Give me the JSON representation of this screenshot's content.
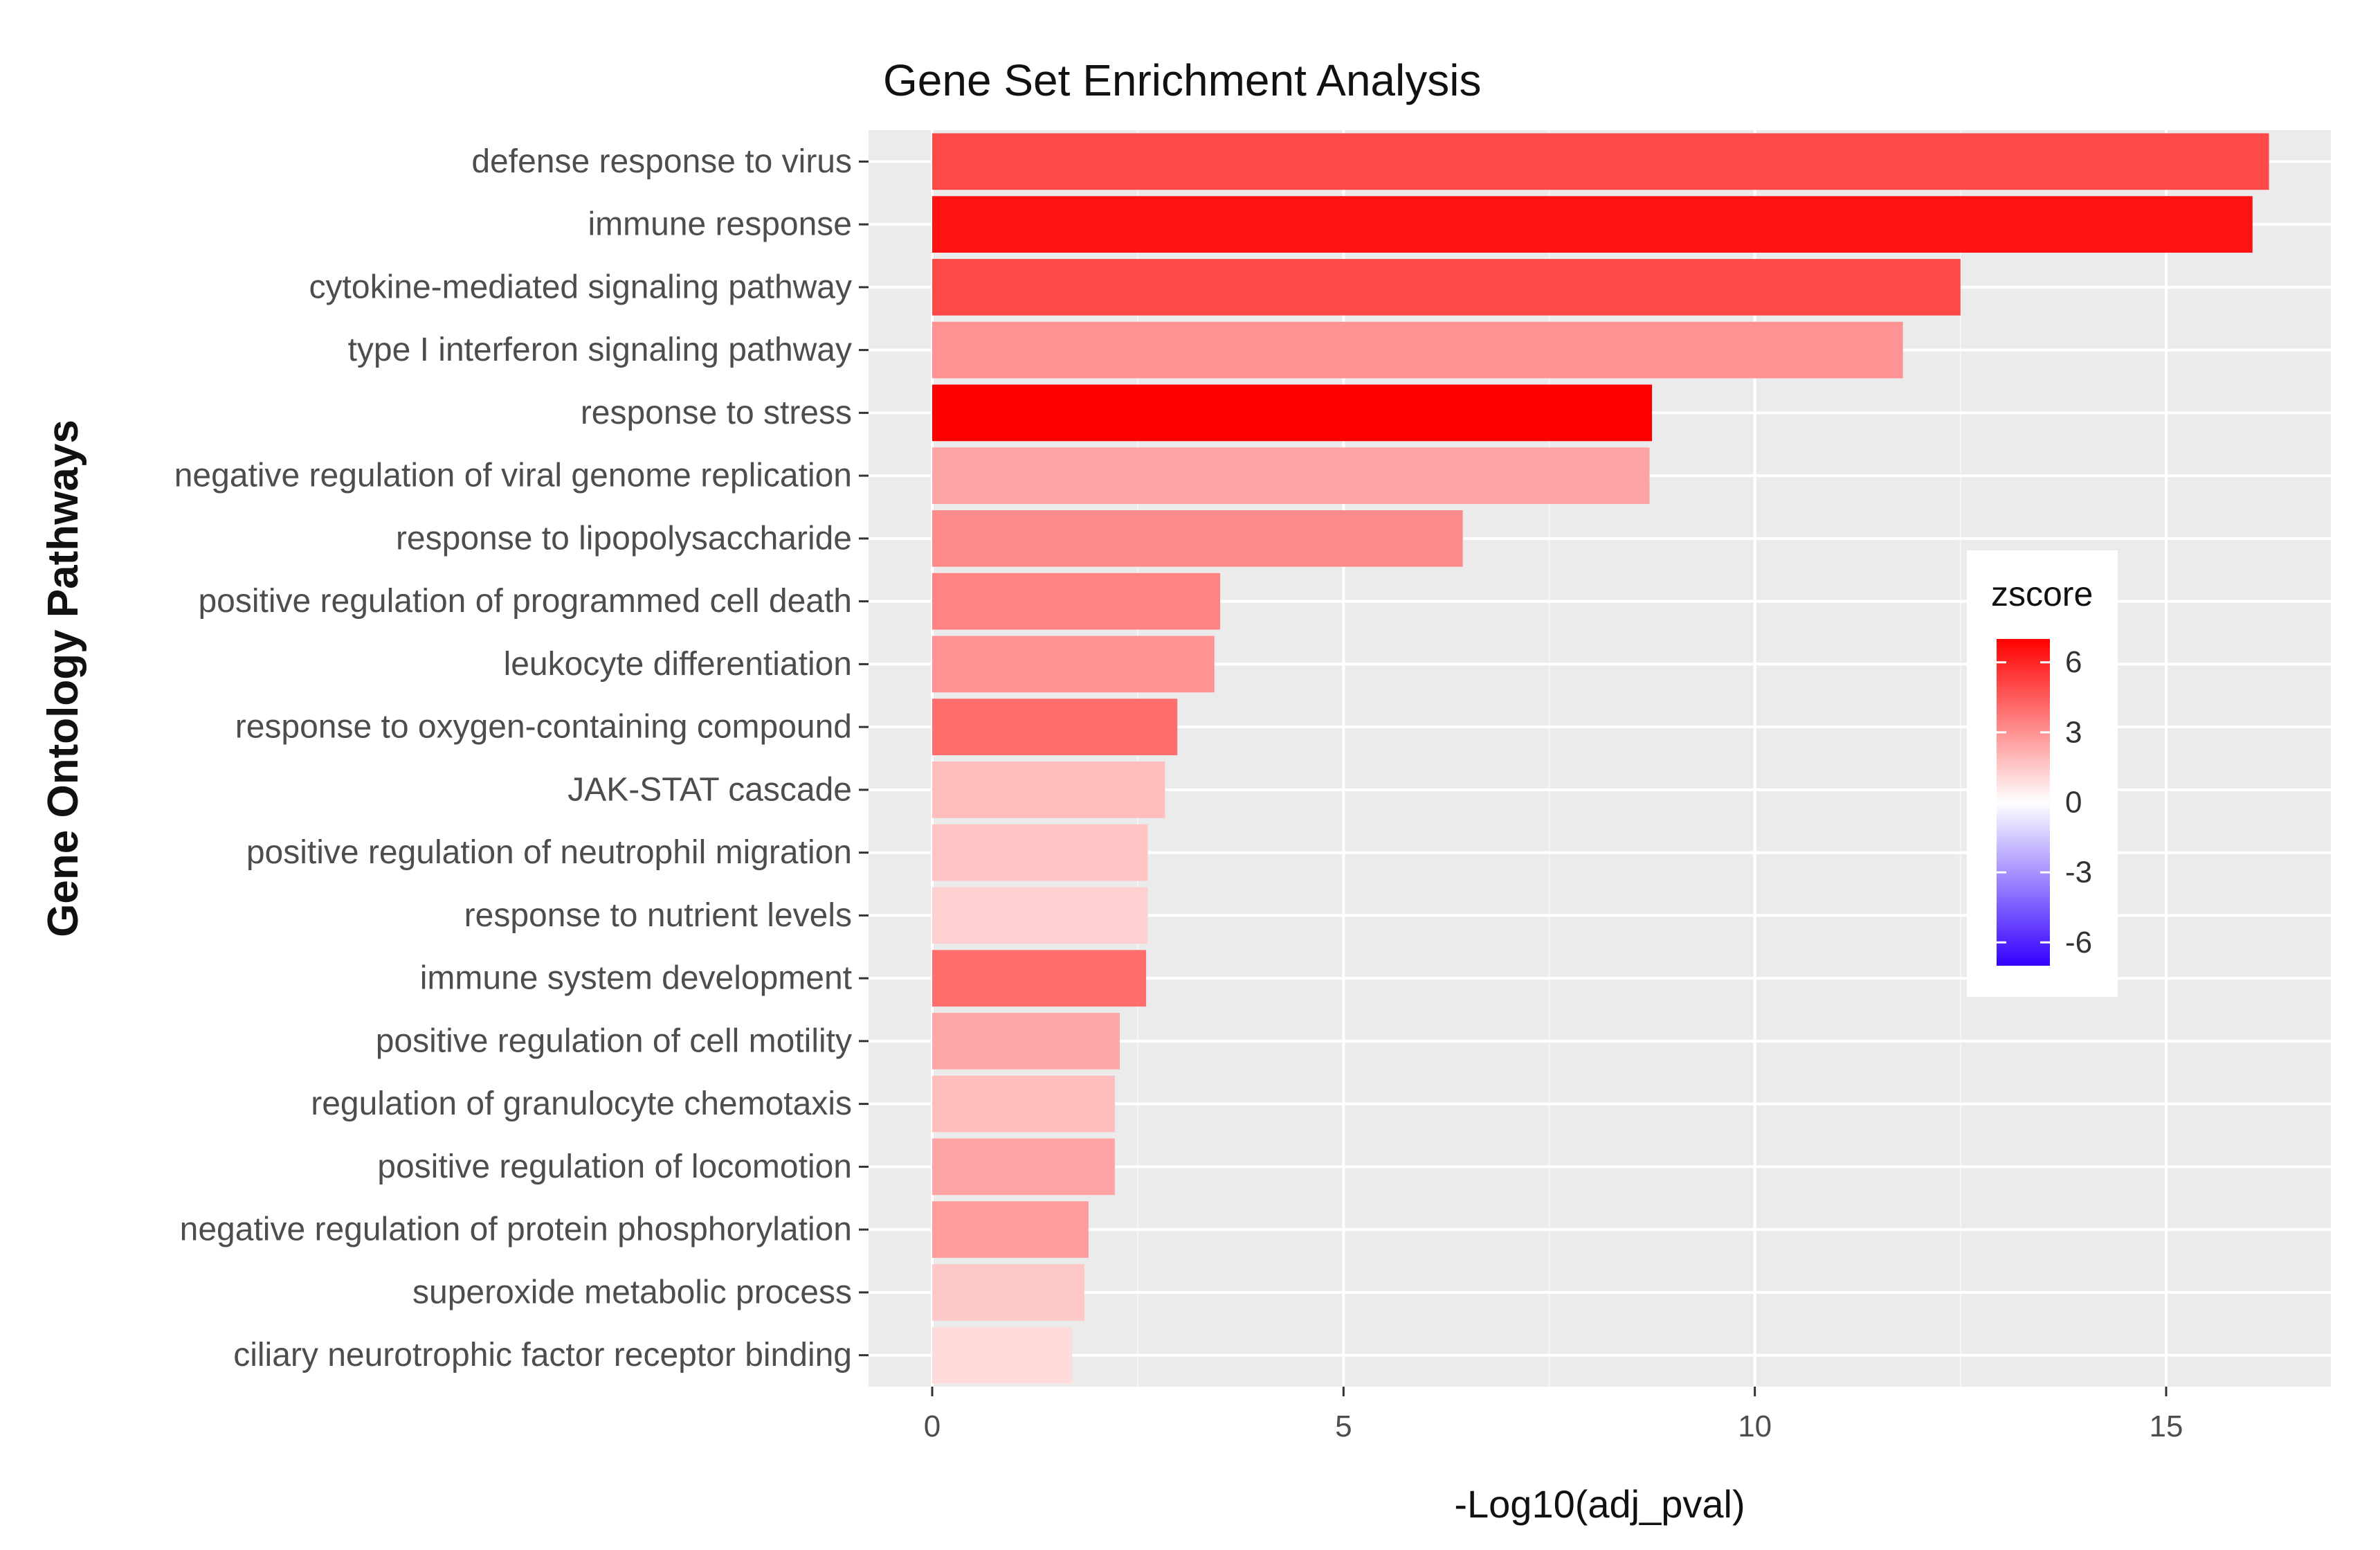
{
  "chart_data": {
    "type": "bar",
    "orientation": "horizontal",
    "title": "Gene Set Enrichment Analysis",
    "xlabel": "-Log10(adj_pval)",
    "ylabel": "Gene Ontology Pathways",
    "xlim": [
      0,
      17
    ],
    "xticks": [
      0,
      5,
      10,
      15
    ],
    "grid": true,
    "categories": [
      "defense response to virus",
      "immune response",
      "cytokine-mediated signaling pathway",
      "type I interferon signaling pathway",
      "response to stress",
      "negative regulation of viral genome replication",
      "response to lipopolysaccharide",
      "positive regulation of programmed cell death",
      "leukocyte differentiation",
      "response to oxygen-containing compound",
      "JAK-STAT cascade",
      "positive regulation of neutrophil migration",
      "response to nutrient levels",
      "immune system development",
      "positive regulation of cell motility",
      "regulation of granulocyte chemotaxis",
      "positive regulation of locomotion",
      "negative regulation of protein phosphorylation",
      "superoxide metabolic process",
      "ciliary neurotrophic factor receptor binding"
    ],
    "values": [
      16.25,
      16.05,
      12.5,
      11.8,
      8.75,
      8.72,
      6.45,
      3.5,
      3.43,
      2.98,
      2.83,
      2.62,
      2.62,
      2.6,
      2.28,
      2.22,
      2.22,
      1.9,
      1.85,
      1.7
    ],
    "zscore": [
      5.0,
      6.5,
      5.0,
      3.0,
      7.0,
      2.5,
      3.2,
      3.4,
      3.0,
      4.0,
      1.8,
      1.6,
      1.3,
      4.0,
      2.4,
      1.8,
      2.5,
      2.7,
      1.5,
      1.0
    ],
    "legend": {
      "title": "zscore",
      "ticks": [
        6,
        3,
        0,
        -3,
        -6
      ],
      "tick_labels": [
        "6",
        "3",
        "0",
        "-3",
        "-6"
      ],
      "range": [
        -7,
        7
      ],
      "low_color": "#3300ff",
      "mid_color": "#ffffff",
      "high_color": "#ff0000",
      "placement": "right"
    }
  }
}
